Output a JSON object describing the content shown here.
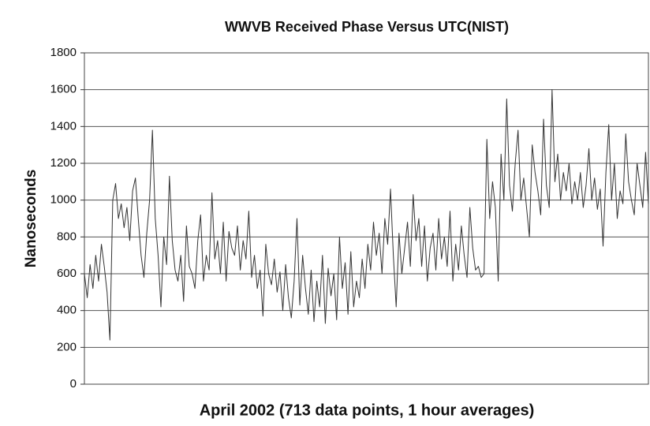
{
  "chart_data": {
    "type": "line",
    "title": "WWVB Received Phase Versus UTC(NIST)",
    "xlabel": "April 2002 (713 data points, 1 hour averages)",
    "ylabel": "Nanoseconds",
    "ylim": [
      0,
      1800
    ],
    "yticks": [
      0,
      200,
      400,
      600,
      800,
      1000,
      1200,
      1400,
      1600,
      1800
    ],
    "grid": true,
    "color": "#333333",
    "values": [
      600,
      470,
      650,
      520,
      700,
      560,
      760,
      640,
      500,
      240,
      1000,
      1090,
      900,
      980,
      850,
      960,
      780,
      1050,
      1120,
      900,
      700,
      580,
      820,
      1000,
      1380,
      900,
      700,
      420,
      800,
      650,
      1130,
      780,
      620,
      560,
      700,
      450,
      860,
      640,
      600,
      520,
      780,
      920,
      560,
      700,
      620,
      1040,
      680,
      780,
      600,
      880,
      560,
      830,
      740,
      700,
      860,
      620,
      780,
      680,
      940,
      580,
      700,
      520,
      620,
      370,
      760,
      600,
      540,
      680,
      500,
      610,
      400,
      650,
      470,
      360,
      560,
      900,
      430,
      700,
      520,
      380,
      620,
      340,
      560,
      420,
      700,
      330,
      630,
      480,
      600,
      350,
      800,
      520,
      660,
      380,
      720,
      420,
      560,
      470,
      680,
      520,
      760,
      620,
      880,
      700,
      820,
      600,
      900,
      760,
      1060,
      700,
      420,
      820,
      600,
      740,
      880,
      640,
      1030,
      780,
      900,
      640,
      860,
      560,
      740,
      820,
      620,
      900,
      680,
      800,
      640,
      940,
      560,
      760,
      620,
      860,
      700,
      580,
      960,
      740,
      620,
      640,
      580,
      600,
      1330,
      900,
      1100,
      960,
      560,
      1250,
      1000,
      1550,
      1080,
      940,
      1200,
      1380,
      1000,
      1120,
      960,
      800,
      1300,
      1150,
      1050,
      920,
      1440,
      1080,
      960,
      1600,
      1100,
      1250,
      1000,
      1150,
      1050,
      1200,
      980,
      1100,
      1000,
      1150,
      960,
      1080,
      1280,
      1000,
      1120,
      950,
      1060,
      750,
      1150,
      1410,
      1000,
      1200,
      900,
      1050,
      980,
      1360,
      1100,
      1000,
      920,
      1200,
      1080,
      960,
      1260,
      980
    ]
  }
}
